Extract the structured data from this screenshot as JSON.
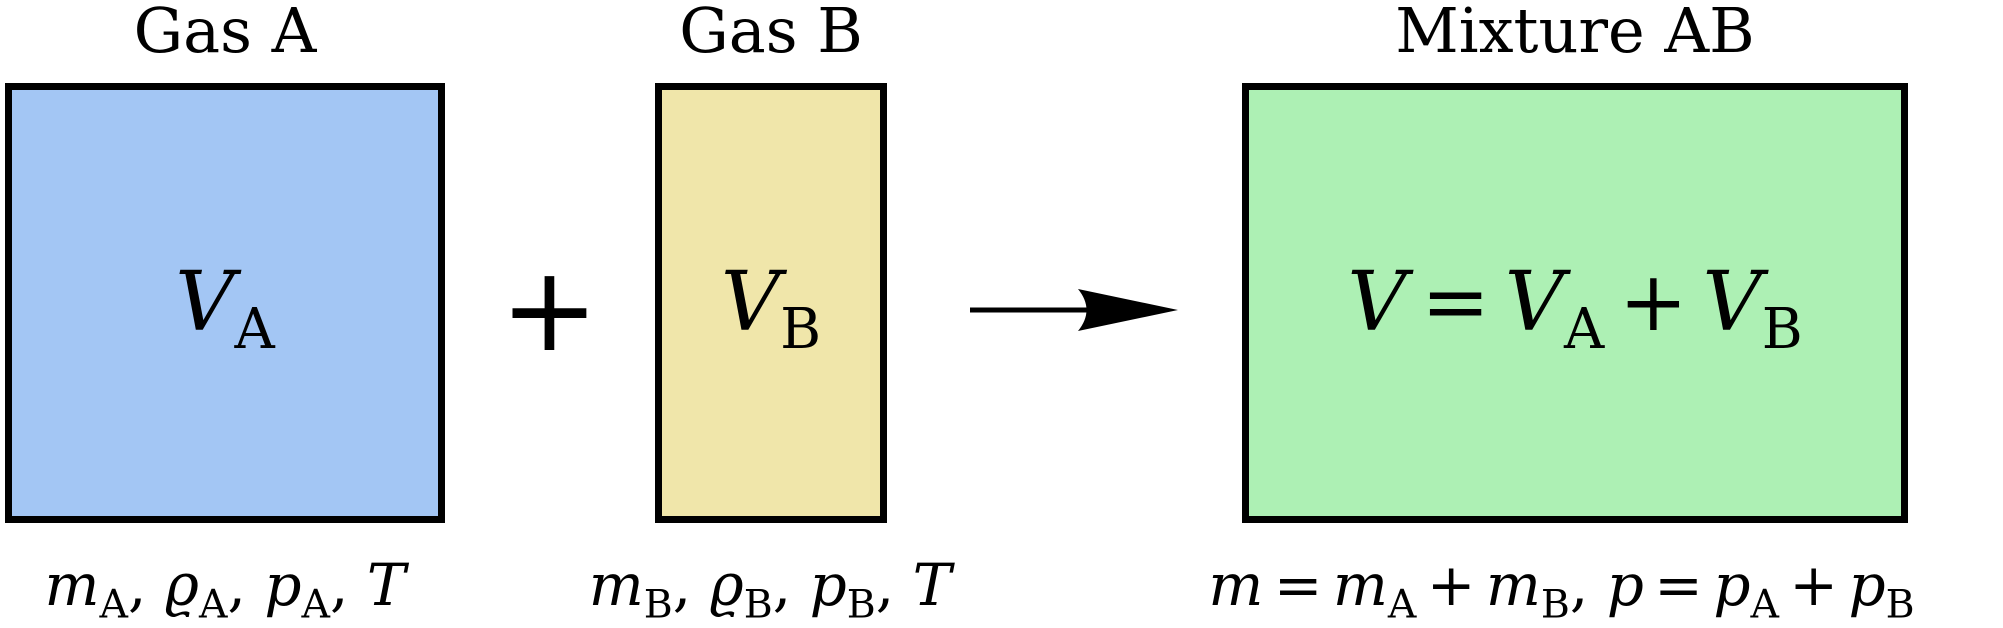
{
  "gas_a": {
    "title": "Gas A",
    "color": "#a3c6f4",
    "volume": {
      "sym": "V",
      "sub": "A"
    },
    "props": [
      {
        "sym": "m",
        "sub": "A"
      },
      {
        "sym": "ϱ",
        "sub": "A"
      },
      {
        "sym": "p",
        "sub": "A"
      },
      {
        "sym": "T"
      }
    ]
  },
  "gas_b": {
    "title": "Gas B",
    "color": "#f0e6aa",
    "volume": {
      "sym": "V",
      "sub": "B"
    },
    "props": [
      {
        "sym": "m",
        "sub": "B"
      },
      {
        "sym": "ϱ",
        "sub": "B"
      },
      {
        "sym": "p",
        "sub": "B"
      },
      {
        "sym": "T"
      }
    ]
  },
  "mixture": {
    "title": "Mixture AB",
    "color": "#adf0b4",
    "volume_equation": {
      "lhs": "V",
      "eq": "=",
      "t1": "V",
      "t1_sub": "A",
      "plus": "+",
      "t2": "V",
      "t2_sub": "B"
    },
    "mass_equation": {
      "lhs": "m",
      "eq": "=",
      "t1": "m",
      "t1_sub": "A",
      "plus": "+",
      "t2": "m",
      "t2_sub": "B"
    },
    "pressure_equation": {
      "lhs": "p",
      "eq": "=",
      "t1": "p",
      "t1_sub": "A",
      "plus": "+",
      "t2": "p",
      "t2_sub": "B"
    }
  },
  "separator": ",",
  "plus_symbol": "+"
}
